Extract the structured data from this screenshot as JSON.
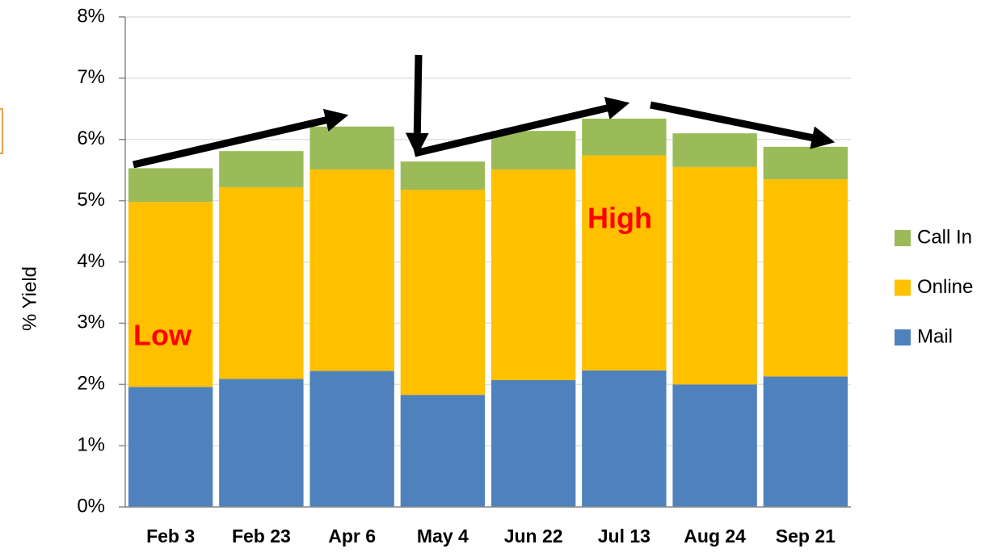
{
  "chart_data": {
    "type": "stacked_bar",
    "y_label": "% Yield",
    "categories": [
      "Feb 3",
      "Feb 23",
      "Apr 6",
      "May 4",
      "Jun 22",
      "Jul 13",
      "Aug 24",
      "Sep 21"
    ],
    "series": [
      {
        "name": "Mail",
        "color": "#4f81bd",
        "values": [
          1.96,
          2.09,
          2.22,
          1.83,
          2.07,
          2.23,
          2.0,
          2.13
        ]
      },
      {
        "name": "Online",
        "color": "#ffc000",
        "values": [
          3.02,
          3.13,
          3.29,
          3.35,
          3.44,
          3.51,
          3.55,
          3.22
        ]
      },
      {
        "name": "Call In",
        "color": "#9bbb59",
        "values": [
          0.55,
          0.59,
          0.7,
          0.46,
          0.63,
          0.6,
          0.55,
          0.53
        ]
      }
    ],
    "ylim": [
      0,
      8
    ],
    "yticks": [
      {
        "value": 0,
        "label": "0%"
      },
      {
        "value": 1,
        "label": "1%"
      },
      {
        "value": 2,
        "label": "2%"
      },
      {
        "value": 3,
        "label": "3%"
      },
      {
        "value": 4,
        "label": "4%"
      },
      {
        "value": 5,
        "label": "5%"
      },
      {
        "value": 6,
        "label": "6%"
      },
      {
        "value": 7,
        "label": "7%"
      },
      {
        "value": 8,
        "label": "8%"
      }
    ],
    "grid": true,
    "legend": "right",
    "annotations": [
      "Low",
      "High"
    ]
  }
}
